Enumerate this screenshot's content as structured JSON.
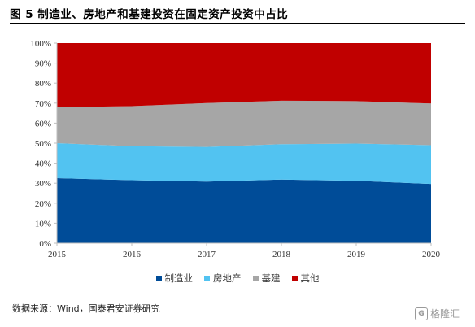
{
  "title": "图 5   制造业、房地产和基建投资在固定资产投资中占比",
  "source": "数据来源：Wind，国泰君安证券研究",
  "watermark": {
    "symbol": "G",
    "text": "格隆汇"
  },
  "colors": {
    "manufacturing": "#004c98",
    "real_estate": "#52c3f1",
    "infrastructure": "#a6a6a6",
    "other": "#c00000",
    "axis": "#bfbfbf"
  },
  "chart_data": {
    "type": "area",
    "stacked": true,
    "x": [
      2015,
      2016,
      2017,
      2018,
      2019,
      2020
    ],
    "xtick_labels": [
      "2015",
      "2016",
      "2017",
      "2018",
      "2019",
      "2020"
    ],
    "ylim": [
      0,
      100
    ],
    "yticks": [
      0,
      10,
      20,
      30,
      40,
      50,
      60,
      70,
      80,
      90,
      100
    ],
    "ytick_labels": [
      "0%",
      "10%",
      "20%",
      "30%",
      "40%",
      "50%",
      "60%",
      "70%",
      "80%",
      "90%",
      "100%"
    ],
    "y_unit": "%",
    "grid": false,
    "legend_position": "bottom",
    "series": [
      {
        "name": "制造业",
        "values": [
          32.5,
          31.5,
          30.8,
          31.8,
          31.2,
          29.6
        ]
      },
      {
        "name": "房地产",
        "values": [
          17.5,
          17.0,
          17.3,
          17.7,
          18.6,
          19.4
        ]
      },
      {
        "name": "基建",
        "values": [
          18.0,
          20.0,
          21.9,
          21.7,
          21.2,
          20.8
        ]
      },
      {
        "name": "其他",
        "values": [
          32.0,
          31.5,
          30.0,
          28.8,
          29.0,
          30.2
        ]
      }
    ]
  }
}
